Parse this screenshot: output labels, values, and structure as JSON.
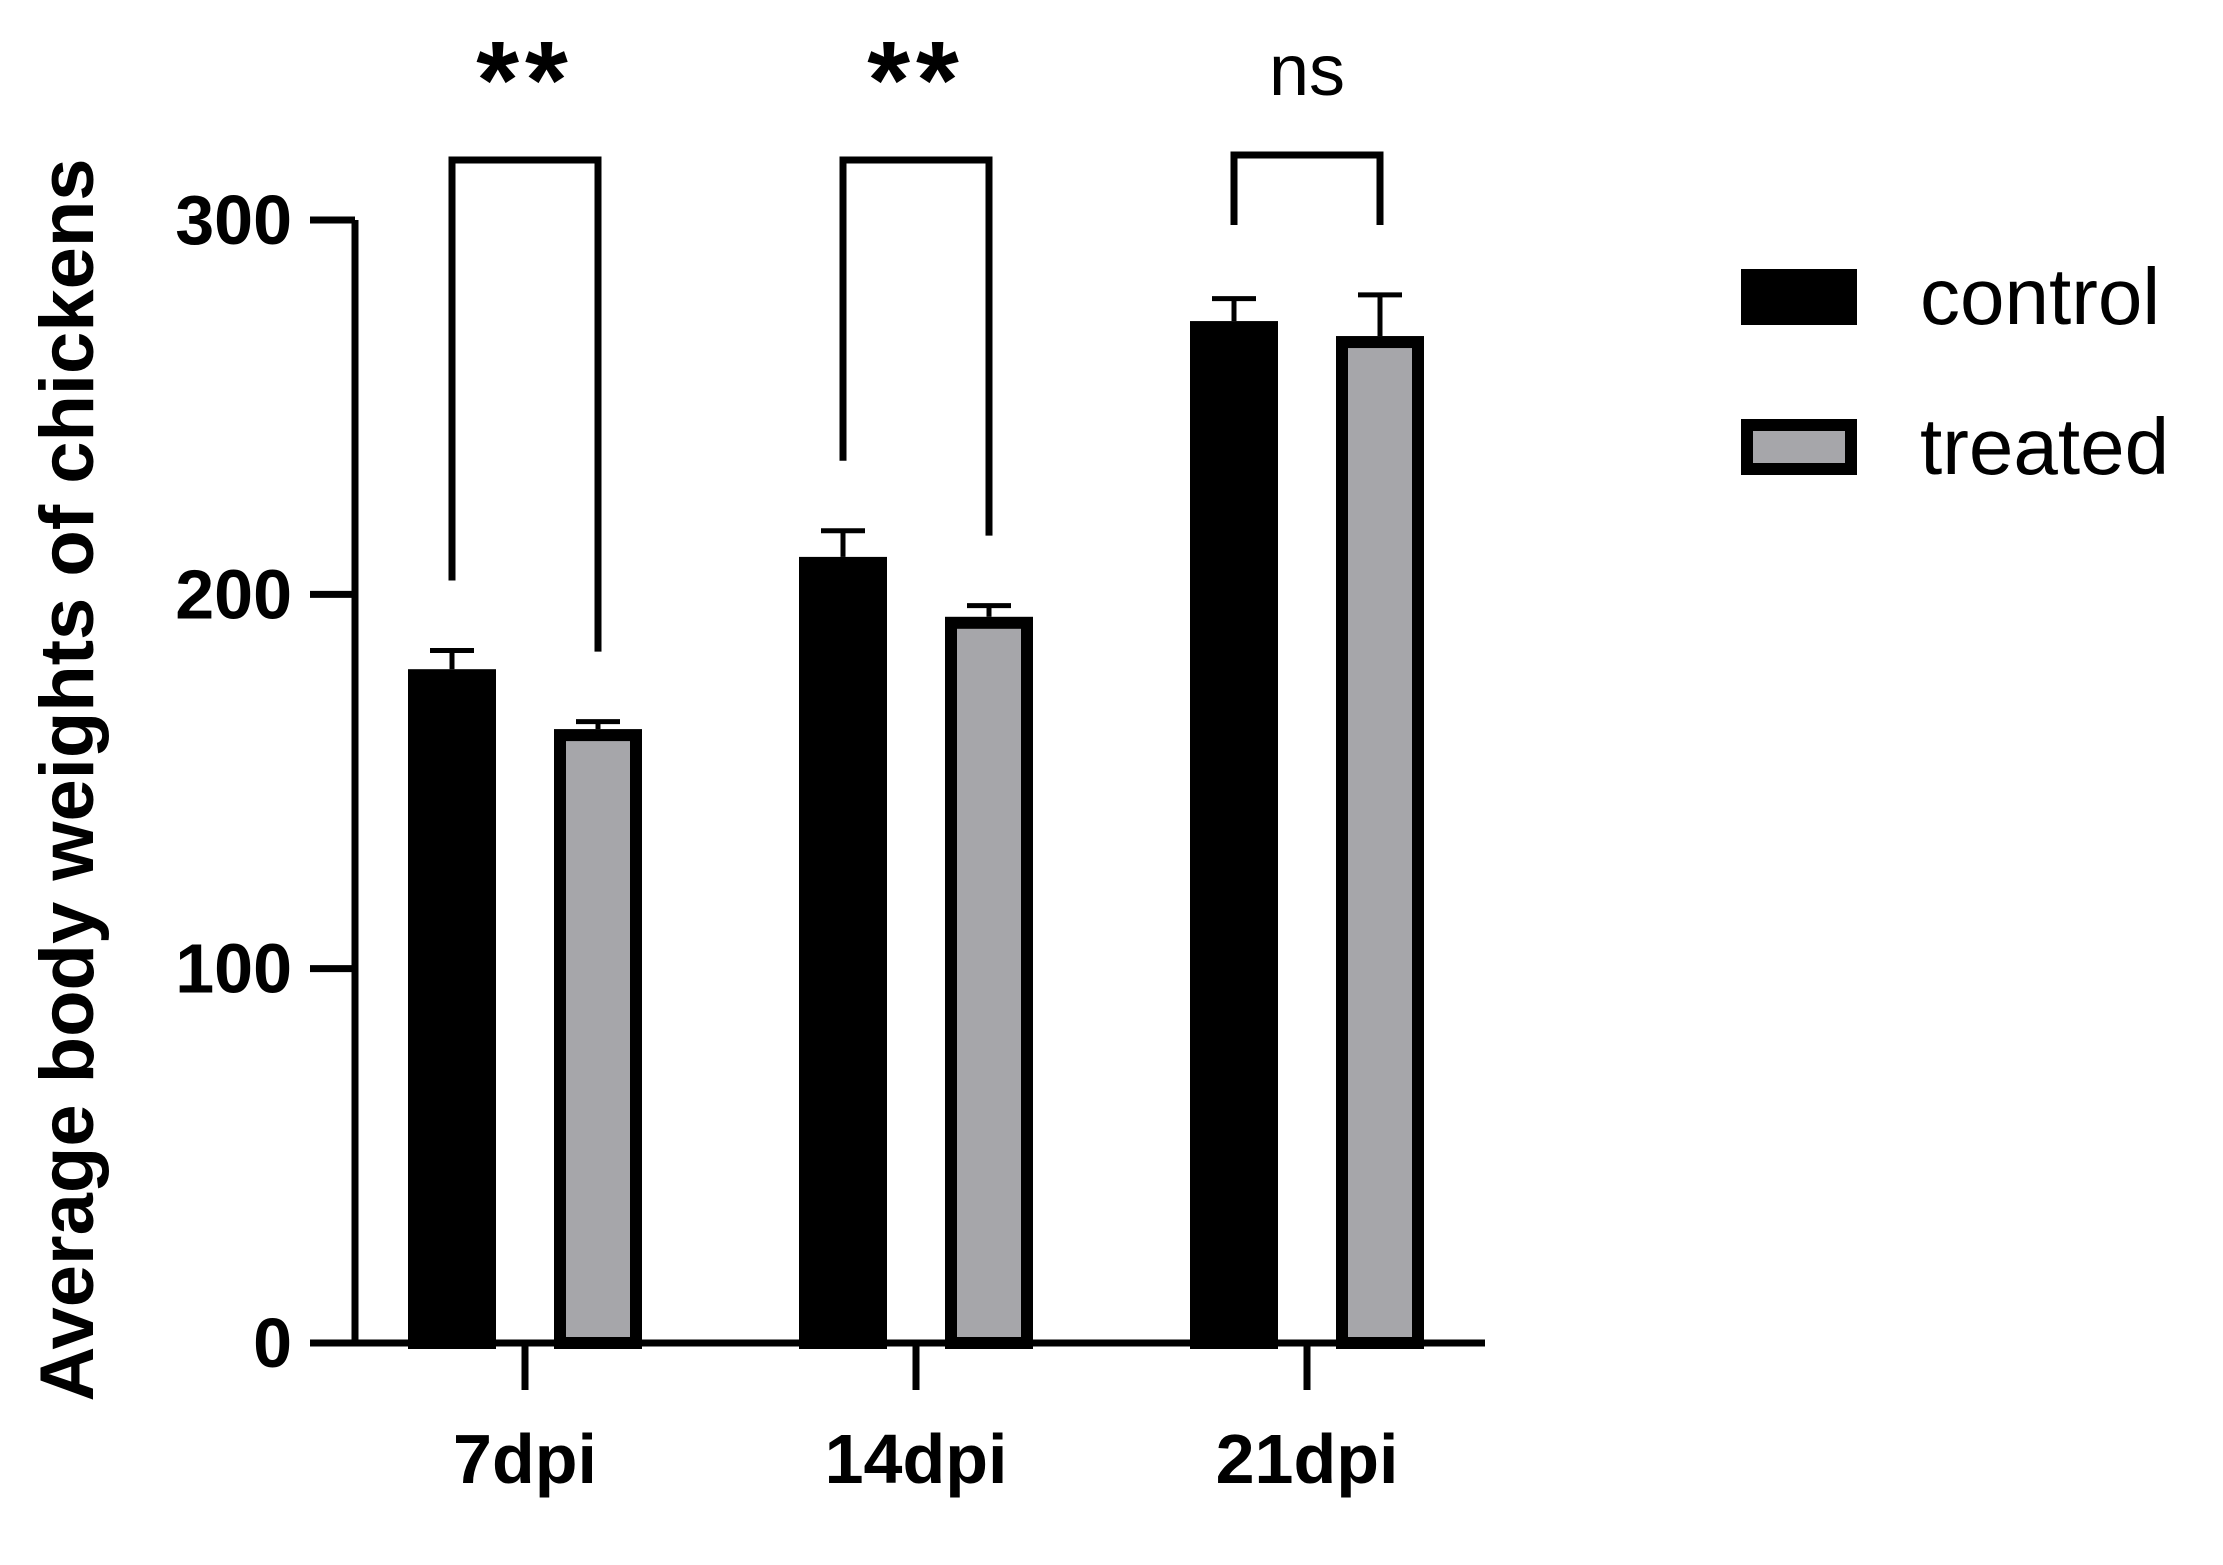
{
  "chart_data": {
    "type": "bar",
    "title": "",
    "xlabel": "",
    "ylabel": "Average body weights of chickens",
    "categories": [
      "7dpi",
      "14dpi",
      "21dpi"
    ],
    "ylim": [
      0,
      300
    ],
    "yticks": [
      0,
      100,
      200,
      300
    ],
    "series": [
      {
        "name": "control",
        "values": [
          180,
          210,
          273
        ],
        "errors": [
          5,
          7,
          6
        ],
        "fill": "#000000",
        "stroke": "#000000"
      },
      {
        "name": "treated",
        "values": [
          164,
          194,
          269
        ],
        "errors": [
          2,
          3,
          11
        ],
        "fill": "#a6a6aa",
        "stroke": "#000000"
      }
    ],
    "significance": [
      "**",
      "**",
      "ns"
    ],
    "legend": {
      "position": "right",
      "entries": [
        "control",
        "treated"
      ]
    },
    "grid": false
  }
}
